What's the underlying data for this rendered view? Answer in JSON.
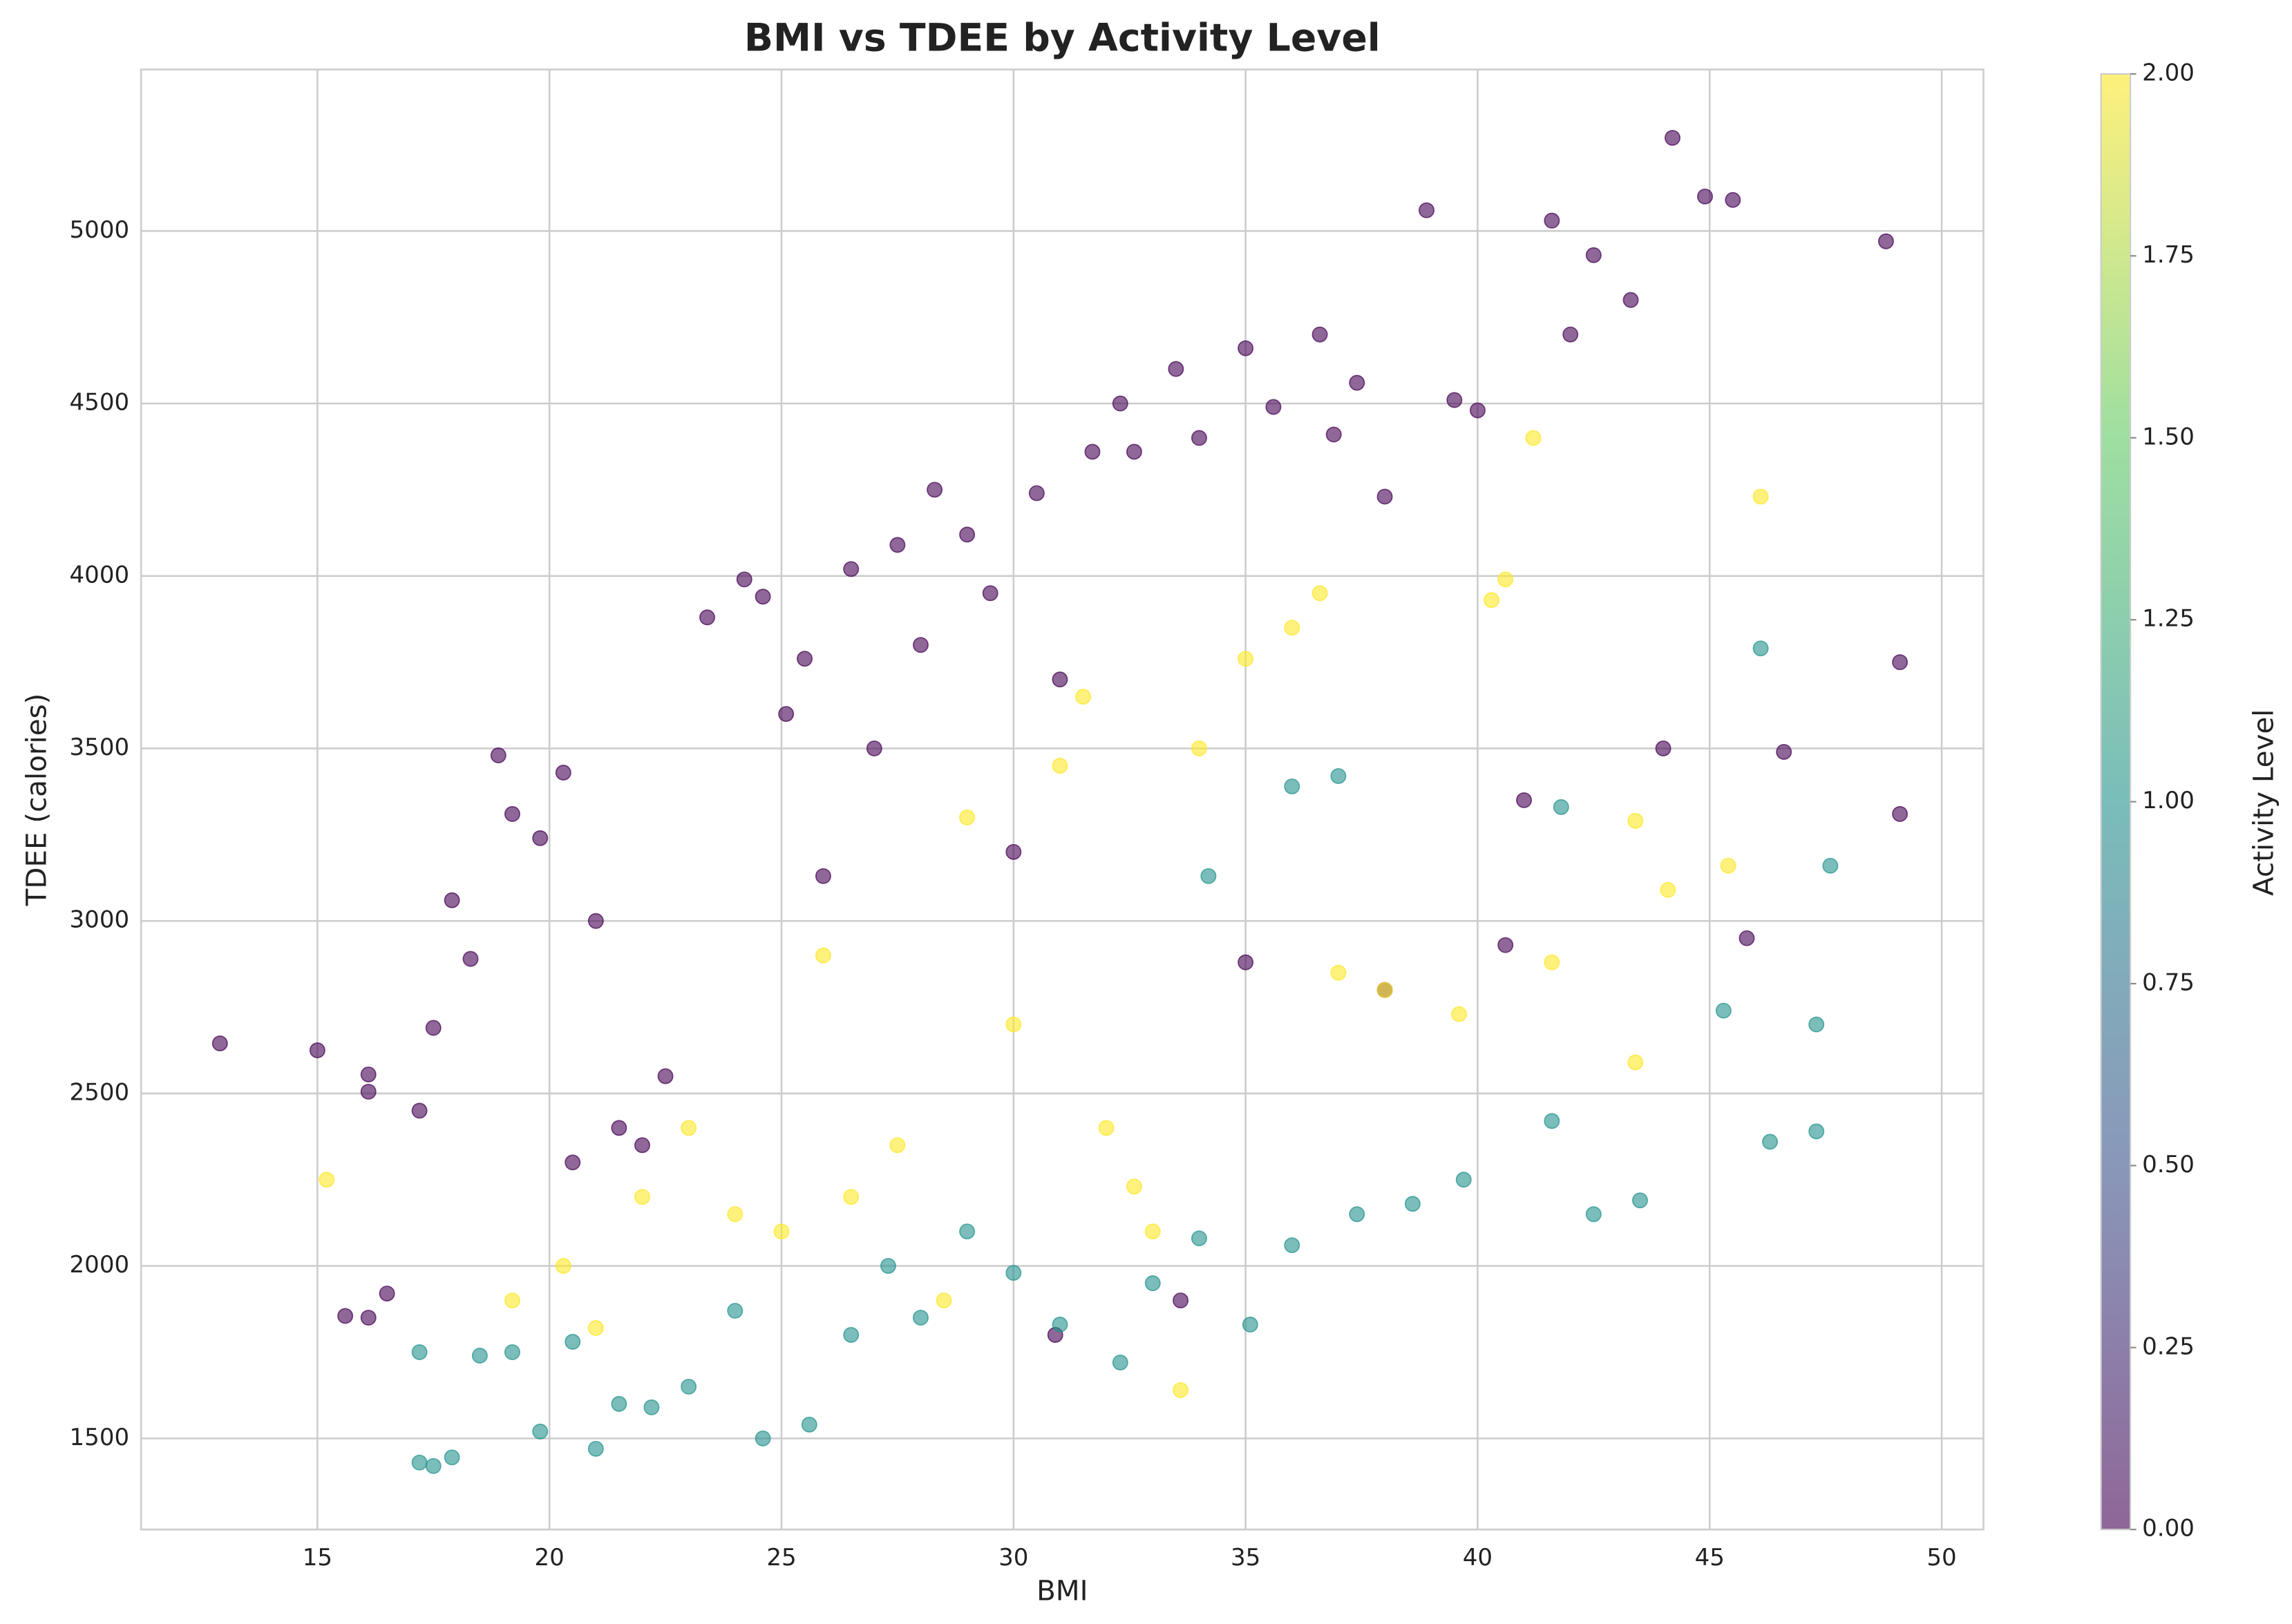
{
  "chart_data": {
    "type": "scatter",
    "title": "BMI vs TDEE by Activity Level",
    "x_label": "BMI",
    "y_label": "TDEE (calories)",
    "xlim": [
      11.2,
      50.9
    ],
    "xticks": [
      15,
      20,
      25,
      30,
      35,
      40,
      45,
      50
    ],
    "ylim": [
      1236,
      5468
    ],
    "yticks": [
      1500,
      2000,
      2500,
      3000,
      3500,
      4000,
      4500,
      5000
    ],
    "grid": true,
    "series": [
      {
        "color": "#440154",
        "x": [
          12.9,
          15,
          16.1,
          16.1,
          15.6,
          16.1,
          16.5,
          17.2,
          17.5,
          17.9,
          18.3,
          18.9,
          19.2,
          19.8,
          20.3,
          21,
          21.5,
          22,
          20.5,
          22.5,
          23.4,
          24.2,
          24.6,
          25.1,
          25.5,
          25.9,
          26.5,
          27,
          27.5,
          28,
          28.3,
          29,
          29.5,
          30,
          30.5,
          31,
          31.7,
          32.3,
          32.6,
          33.5,
          34,
          35,
          35.6,
          36.6,
          36.9,
          37.4,
          38,
          38.9,
          39.5,
          40,
          41.6,
          42,
          42.5,
          43.3,
          44.2,
          44.9,
          45.5,
          48.8,
          49.1,
          49.1,
          46.6,
          45.8,
          40.6,
          35,
          33.6,
          30.9,
          38,
          41,
          44
        ],
        "values": [
          2645,
          2625,
          2555,
          2505,
          1855,
          1850,
          1920,
          2450,
          2690,
          3060,
          2890,
          3480,
          3310,
          3240,
          3430,
          3000,
          2400,
          2350,
          2300,
          2550,
          3880,
          3990,
          3940,
          3600,
          3760,
          3130,
          4020,
          3500,
          4090,
          3800,
          4250,
          4120,
          3950,
          3200,
          4240,
          3700,
          4360,
          4500,
          4360,
          4600,
          4400,
          4660,
          4490,
          4700,
          4410,
          4560,
          4230,
          5060,
          4510,
          4480,
          5030,
          4700,
          4930,
          4800,
          5270,
          5100,
          5090,
          4970,
          3750,
          3310,
          3490,
          2950,
          2930,
          2880,
          1900,
          1800,
          2800,
          3350,
          3500
        ]
      },
      {
        "color": "#21918c",
        "x": [
          17.2,
          17.5,
          17.9,
          17.2,
          18.5,
          19.2,
          19.8,
          20.5,
          21,
          21.5,
          22.2,
          23,
          24,
          24.6,
          25.6,
          26.5,
          27.3,
          28,
          29,
          30,
          31,
          32.3,
          33,
          34,
          35.1,
          36,
          37.4,
          38.6,
          39.7,
          41.6,
          42.5,
          43.5,
          45.3,
          46.1,
          47.3,
          47.6,
          46.3,
          47.3,
          41.8,
          36,
          34.2,
          37
        ],
        "values": [
          1430,
          1420,
          1445,
          1750,
          1740,
          1750,
          1520,
          1780,
          1470,
          1600,
          1590,
          1650,
          1870,
          1500,
          1540,
          1800,
          2000,
          1850,
          2100,
          1980,
          1830,
          1720,
          1950,
          2080,
          1830,
          2060,
          2150,
          2180,
          2250,
          2420,
          2150,
          2190,
          2740,
          3790,
          2700,
          3160,
          2360,
          2390,
          3330,
          3390,
          3130,
          3420
        ]
      },
      {
        "color": "#fde725",
        "x": [
          15.2,
          19.2,
          20.3,
          21,
          22,
          23,
          24,
          25,
          25.9,
          26.5,
          27.5,
          28.5,
          29,
          30,
          31,
          31.5,
          32,
          33,
          33.6,
          34,
          35,
          36,
          37,
          38,
          39.6,
          40.3,
          40.6,
          41.2,
          41.6,
          43.4,
          43.4,
          44.1,
          45.4,
          46.1,
          36.6,
          32.6
        ],
        "values": [
          2250,
          1900,
          2000,
          1820,
          2200,
          2400,
          2150,
          2100,
          2900,
          2200,
          2350,
          1900,
          3300,
          2700,
          3450,
          3650,
          2400,
          2100,
          1640,
          3500,
          3760,
          3850,
          2850,
          2800,
          2730,
          3930,
          3990,
          4400,
          2880,
          2590,
          3290,
          3090,
          3160,
          4230,
          3950,
          2230
        ]
      }
    ],
    "colorbar": {
      "label": "Activity Level",
      "lim": [
        0,
        2
      ],
      "colors": [
        "#440154",
        "#3b528b",
        "#21918c",
        "#5ec962",
        "#fde725"
      ],
      "ticks": [
        {
          "value": 0,
          "label": "0.00"
        },
        {
          "value": 0.25,
          "label": "0.25"
        },
        {
          "value": 0.5,
          "label": "0.50"
        },
        {
          "value": 0.75,
          "label": "0.75"
        },
        {
          "value": 1,
          "label": "1.00"
        },
        {
          "value": 1.25,
          "label": "1.25"
        },
        {
          "value": 1.5,
          "label": "1.50"
        },
        {
          "value": 1.75,
          "label": "1.75"
        },
        {
          "value": 2,
          "label": "2.00"
        }
      ]
    }
  }
}
